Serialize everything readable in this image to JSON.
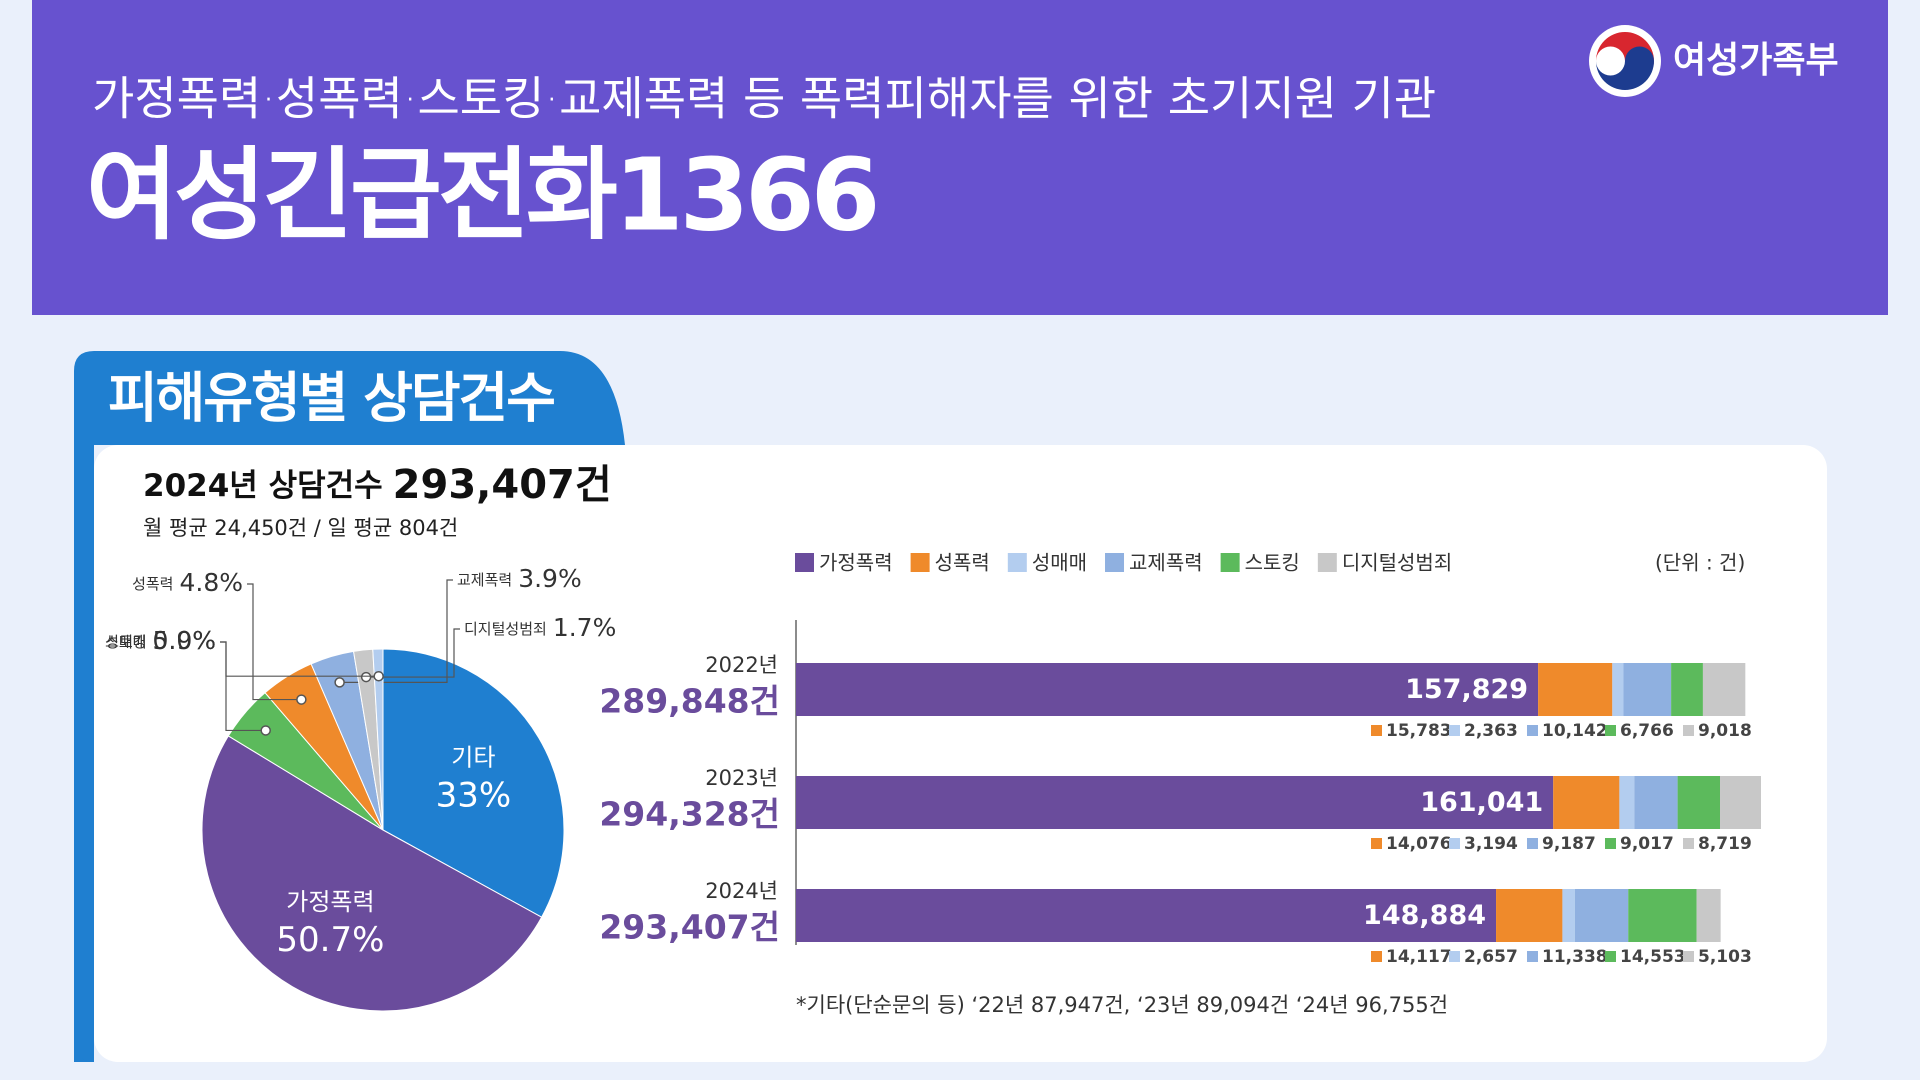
{
  "header": {
    "subtitle": "가정폭력·성폭력·스토킹·교제폭력 등 폭력피해자를 위한 초기지원 기관",
    "title": "여성긴급전화1366",
    "logo": "여성가족부"
  },
  "section_title": "피해유형별 상담건수",
  "summary": {
    "headline": "2024년 상담건수",
    "total": "293,407건",
    "average": "월 평균 24,450건 / 일 평균 804건"
  },
  "chart_data": [
    {
      "type": "pie",
      "categories": [
        "기타",
        "가정폭력",
        "스토킹",
        "성폭력",
        "교제폭력",
        "디지털성범죄",
        "성매매"
      ],
      "values": [
        33,
        50.7,
        5.0,
        4.8,
        3.9,
        1.7,
        0.9
      ],
      "value_labels": [
        "33%",
        "50.7%",
        "5.0%",
        "4.8%",
        "3.9%",
        "1.7%",
        "0.9%"
      ],
      "colors": [
        "#1f7fd0",
        "#6a4c9c",
        "#5cba5c",
        "#ef8a2b",
        "#8fb0e0",
        "#c8c8c8",
        "#b3cdef"
      ]
    },
    {
      "type": "stacked_bar",
      "orientation": "horizontal",
      "categories": [
        "2022년",
        "2023년",
        "2024년"
      ],
      "totals": [
        "289,848건",
        "294,328건",
        "293,407건"
      ],
      "unit": "(단위 : 건)",
      "series": [
        {
          "name": "가정폭력",
          "color": "#6a4c9c",
          "values": [
            157829,
            161041,
            148884
          ],
          "value_labels": [
            "157,829",
            "161,041",
            "148,884"
          ]
        },
        {
          "name": "성폭력",
          "color": "#ef8a2b",
          "values": [
            15783,
            14076,
            14117
          ],
          "value_labels": [
            "15,783",
            "14,076",
            "14,117"
          ]
        },
        {
          "name": "성매매",
          "color": "#b3cdef",
          "values": [
            2363,
            3194,
            2657
          ],
          "value_labels": [
            "2,363",
            "3,194",
            "2,657"
          ]
        },
        {
          "name": "교제폭력",
          "color": "#8fb0e0",
          "values": [
            10142,
            9187,
            11338
          ],
          "value_labels": [
            "10,142",
            "9,187",
            "11,338"
          ]
        },
        {
          "name": "스토킹",
          "color": "#5cba5c",
          "values": [
            6766,
            9017,
            14553
          ],
          "value_labels": [
            "6,766",
            "9,017",
            "14,553"
          ]
        },
        {
          "name": "디지털성범죄",
          "color": "#c8c8c8",
          "values": [
            9018,
            8719,
            5103
          ],
          "value_labels": [
            "9,018",
            "8,719",
            "5,103"
          ]
        }
      ],
      "footnote": "*기타(단순문의 등) ‘22년 87,947건, ‘23년 89,094건 ‘24년 96,755건"
    }
  ]
}
